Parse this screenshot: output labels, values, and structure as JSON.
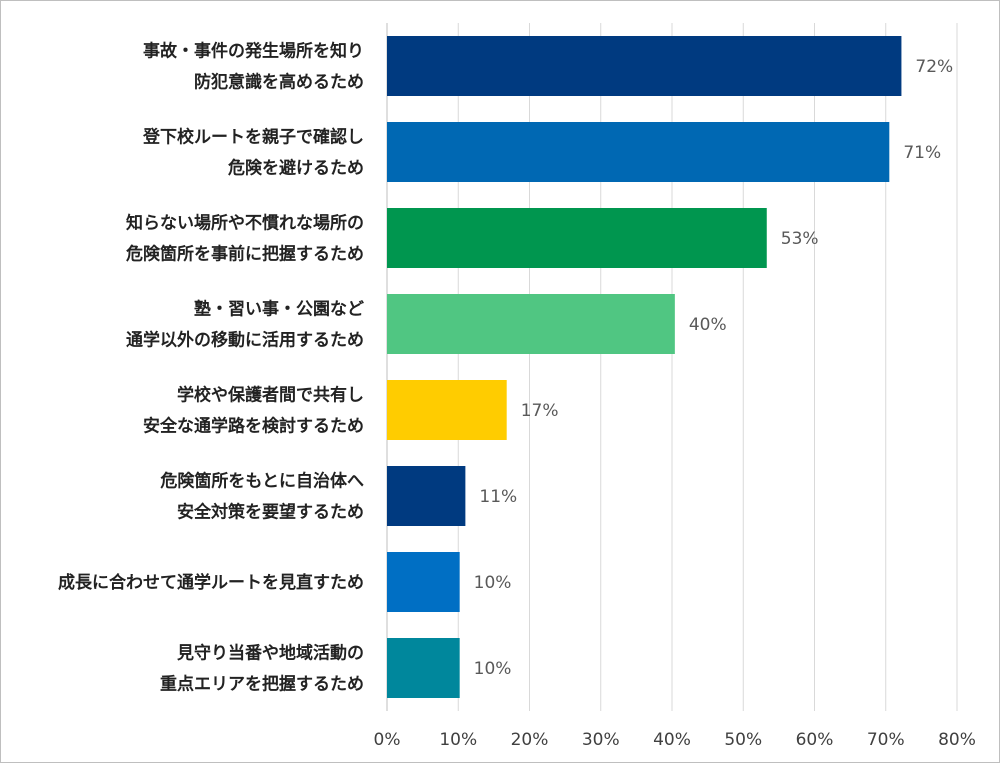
{
  "chart_data": {
    "type": "bar",
    "orientation": "horizontal",
    "title": "",
    "xlabel": "",
    "ylabel": "",
    "xlim": [
      0,
      80
    ],
    "x_ticks": [
      "0%",
      "10%",
      "20%",
      "30%",
      "40%",
      "50%",
      "60%",
      "70%",
      "80%"
    ],
    "grid": "vertical",
    "legend": "none",
    "categories": [
      [
        "事故・事件の発生場所を知り",
        "防犯意識を高めるため"
      ],
      [
        "登下校ルートを親子で確認し",
        "危険を避けるため"
      ],
      [
        "知らない場所や不慣れな場所の",
        "危険箇所を事前に把握するため"
      ],
      [
        "塾・習い事・公園など",
        "通学以外の移動に活用するため"
      ],
      [
        "学校や保護者間で共有し",
        "安全な通学路を検討するため"
      ],
      [
        "危険箇所をもとに自治体へ",
        "安全対策を要望するため"
      ],
      [
        "成長に合わせて通学ルートを見直すため"
      ],
      [
        "見守り当番や地域活動の",
        "重点エリアを把握するため"
      ]
    ],
    "values": [
      72.2,
      70.5,
      53.3,
      40.4,
      16.8,
      11.0,
      10.2,
      10.2
    ],
    "value_labels": [
      "72%",
      "71%",
      "53%",
      "40%",
      "17%",
      "11%",
      "10%",
      "10%"
    ],
    "colors": [
      "#003a80",
      "#0068b3",
      "#00964f",
      "#50c682",
      "#ffcc00",
      "#003a80",
      "#006fc4",
      "#00879c"
    ],
    "gridline_color": "#d9d9d9"
  }
}
